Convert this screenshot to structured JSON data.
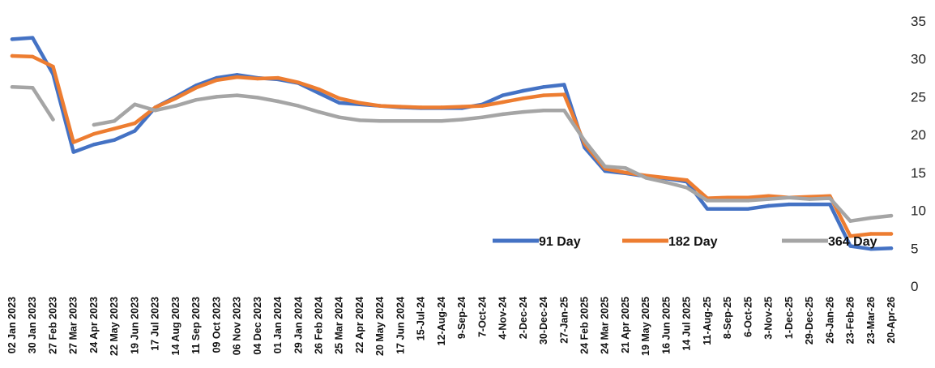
{
  "chart_data": {
    "type": "line",
    "title": "",
    "xlabel": "",
    "ylabel": "",
    "ylim": [
      0,
      35
    ],
    "yticks": [
      "0",
      "5",
      "10",
      "15",
      "20",
      "25",
      "30",
      "35"
    ],
    "y_axis_position": "right",
    "grid": false,
    "legend_position": "inside-lower-right",
    "categories": [
      "02 Jan 2023",
      "30 Jan 2023",
      "27 Feb 2023",
      "27 Mar 2023",
      "24 Apr 2023",
      "22 May 2023",
      "19 Jun 2023",
      "17 Jul 2023",
      "14 Aug 2023",
      "11 Sep 2023",
      "09 Oct 2023",
      "06 Nov 2023",
      "04 Dec 2023",
      "01 Jan 2024",
      "29 Jan 2024",
      "26 Feb 2024",
      "25 Mar 2024",
      "22 Apr 2024",
      "20 May 2024",
      "17 Jun 2024",
      "15-Jul-24",
      "12-Aug-24",
      "9-Sep-24",
      "7-Oct-24",
      "4-Nov-24",
      "2-Dec-24",
      "30-Dec-24",
      "27-Jan-25",
      "24 Feb 2025",
      "24 Mar 2025",
      "21 Apr 2025",
      "19 May 2025",
      "16 Jun 2025",
      "14 Jul 2025",
      "11-Aug-25",
      "8-Sep-25",
      "6-Oct-25",
      "3-Nov-25",
      "1-Dec-25",
      "29-Dec-25",
      "26-Jan-26",
      "23-Feb-26",
      "23-Mar-26",
      "20-Apr-26"
    ],
    "series": [
      {
        "name": "91 Day",
        "color": "#4472C4",
        "values": [
          32.6,
          32.8,
          28.0,
          17.7,
          18.7,
          19.3,
          20.5,
          23.6,
          25.0,
          26.5,
          27.5,
          27.9,
          27.5,
          27.3,
          26.8,
          25.5,
          24.2,
          24.0,
          23.8,
          23.6,
          23.5,
          23.5,
          23.5,
          24.0,
          25.2,
          25.8,
          26.3,
          26.6,
          18.3,
          15.2,
          14.9,
          14.5,
          14.2,
          13.8,
          10.2,
          10.2,
          10.2,
          10.6,
          10.8,
          10.8,
          10.8,
          5.3,
          4.9,
          5.0
        ]
      },
      {
        "name": "182 Day",
        "color": "#ED7D31",
        "values": [
          30.4,
          30.3,
          29.0,
          19.0,
          20.1,
          20.8,
          21.5,
          23.6,
          24.8,
          26.2,
          27.2,
          27.6,
          27.4,
          27.5,
          26.9,
          26.0,
          24.8,
          24.2,
          23.8,
          23.7,
          23.6,
          23.6,
          23.7,
          23.8,
          24.3,
          24.8,
          25.2,
          25.3,
          18.8,
          15.5,
          15.0,
          14.6,
          14.3,
          14.0,
          11.6,
          11.7,
          11.7,
          11.9,
          11.7,
          11.8,
          11.9,
          6.6,
          6.9,
          6.9
        ]
      },
      {
        "name": "364 Day",
        "color": "#A5A5A5",
        "values": [
          26.3,
          26.2,
          22.0,
          null,
          21.3,
          21.8,
          24.0,
          23.2,
          23.8,
          24.6,
          25.0,
          25.2,
          24.9,
          24.4,
          23.8,
          23.0,
          22.3,
          21.9,
          21.8,
          21.8,
          21.8,
          21.8,
          22.0,
          22.3,
          22.7,
          23.0,
          23.2,
          23.2,
          19.2,
          15.8,
          15.6,
          14.3,
          13.7,
          13.0,
          11.3,
          11.3,
          11.3,
          11.5,
          11.7,
          11.5,
          11.6,
          8.6,
          9.0,
          9.3
        ]
      }
    ]
  }
}
